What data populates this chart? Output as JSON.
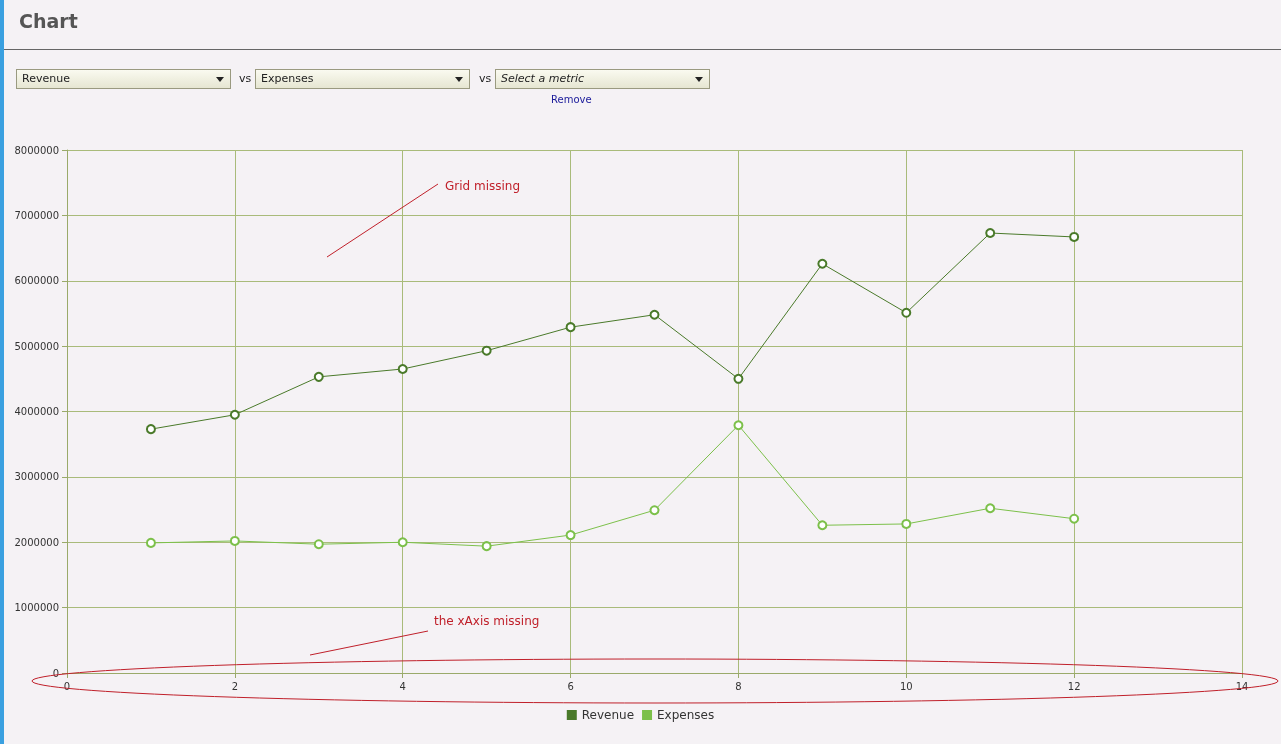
{
  "chart_data": {
    "type": "line",
    "title": "Chart",
    "x": [
      1,
      2,
      3,
      4,
      5,
      6,
      7,
      8,
      9,
      10,
      11,
      12
    ],
    "series": [
      {
        "name": "Revenue",
        "color": "#4a7a2a",
        "values": [
          3730000,
          3950000,
          4530000,
          4650000,
          4930000,
          5290000,
          5480000,
          4500000,
          6260000,
          5510000,
          6730000,
          6670000
        ]
      },
      {
        "name": "Expenses",
        "color": "#7cc04a",
        "values": [
          1990000,
          2020000,
          1970000,
          2000000,
          1940000,
          2110000,
          2490000,
          3790000,
          2260000,
          2280000,
          2520000,
          2360000
        ]
      }
    ],
    "xlim": [
      0,
      14
    ],
    "xticks": [
      0,
      2,
      4,
      6,
      8,
      10,
      12,
      14
    ],
    "ylim": [
      0,
      8000000
    ],
    "yticks": [
      0,
      1000000,
      2000000,
      3000000,
      4000000,
      5000000,
      6000000,
      7000000,
      8000000
    ],
    "grid": true,
    "legend": "bottom",
    "marker": "circle",
    "line_style": "solid",
    "annotations": [
      "Revenue",
      "vs",
      "Expenses",
      "vs",
      "Select a metric",
      "Remove",
      "Grid missing",
      "the xAxis missing"
    ]
  }
}
